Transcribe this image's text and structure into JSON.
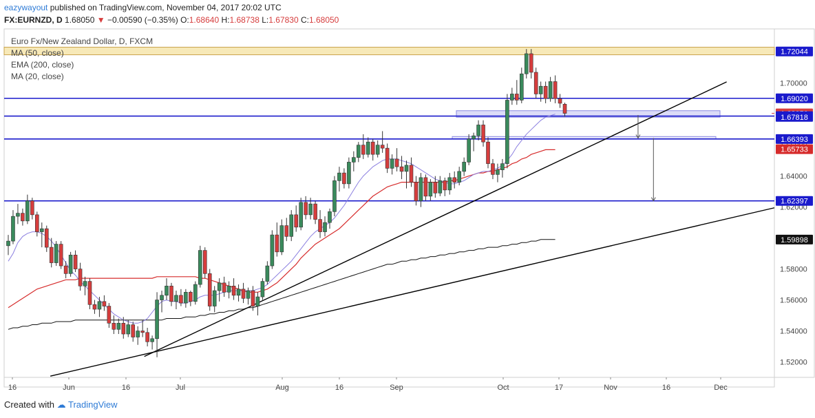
{
  "header": {
    "author": "eazywayout",
    "published": "published on TradingView.com, November 04, 2017 20:02 UTC",
    "symbol": "FX:EURNZD, D",
    "price": "1.68050",
    "change": "−0.00590 (−0.35%)",
    "o_label": "O:",
    "o_value": "1.68640",
    "h_label": "H:",
    "h_value": "1.68738",
    "l_label": "L:",
    "l_value": "1.67830",
    "c_label": "C:",
    "c_value": "1.68050"
  },
  "legend": {
    "title": "Euro Fx/New Zealand Dollar, D, FXCM",
    "ma50": "MA (50, close)",
    "ema200": "EMA (200, close)",
    "ma20": "MA (20, close)"
  },
  "footer": {
    "created_with": "Created with",
    "brand": "TradingView"
  },
  "colors": {
    "up": "#3a8a5c",
    "down": "#d63d3d",
    "ma50": "#d62b2b",
    "ema200": "#111111",
    "ma20": "#8b7fe0",
    "hline": "#1a1acc",
    "zone": "#f7e9b8",
    "trend": "#000000"
  },
  "chart_data": {
    "type": "candlestick",
    "ylim": [
      1.51,
      1.735
    ],
    "x_ticks": [
      "16",
      "Jun",
      "16",
      "Jul",
      "Aug",
      "16",
      "Sep",
      "Oct",
      "17",
      "Nov",
      "16",
      "Dec"
    ],
    "y_ticks": [
      "1.52000",
      "1.54000",
      "1.56000",
      "1.58000",
      "1.60000",
      "1.62000",
      "1.64000",
      "1.66000",
      "1.68000",
      "1.70000"
    ],
    "price_labels": [
      {
        "value": "1.72044",
        "price": 1.72044,
        "kind": "level"
      },
      {
        "value": "1.69020",
        "price": 1.6902,
        "kind": "level"
      },
      {
        "value": "1.68050",
        "price": 1.6805,
        "kind": "last"
      },
      {
        "value": "1.67872",
        "price": 1.67872,
        "kind": "level"
      },
      {
        "value": "1.67818",
        "price": 1.67818,
        "kind": "level"
      },
      {
        "value": "1.66393",
        "price": 1.66393,
        "kind": "level"
      },
      {
        "value": "1.65733",
        "price": 1.65733,
        "kind": "ma"
      },
      {
        "value": "1.62397",
        "price": 1.62397,
        "kind": "level"
      },
      {
        "value": "1.59898",
        "price": 1.59898,
        "kind": "ema"
      }
    ],
    "resistance_zone": [
      1.7183,
      1.7232
    ],
    "horizontal_levels": [
      1.6902,
      1.67872,
      1.66393,
      1.62397
    ],
    "ohlc": [
      [
        1.595,
        1.602,
        1.589,
        1.598
      ],
      [
        1.598,
        1.618,
        1.596,
        1.614
      ],
      [
        1.614,
        1.622,
        1.609,
        1.616
      ],
      [
        1.616,
        1.619,
        1.608,
        1.611
      ],
      [
        1.611,
        1.628,
        1.609,
        1.624
      ],
      [
        1.624,
        1.626,
        1.612,
        1.615
      ],
      [
        1.615,
        1.617,
        1.601,
        1.604
      ],
      [
        1.604,
        1.61,
        1.594,
        1.606
      ],
      [
        1.606,
        1.608,
        1.591,
        1.594
      ],
      [
        1.594,
        1.6,
        1.581,
        1.584
      ],
      [
        1.584,
        1.598,
        1.582,
        1.596
      ],
      [
        1.596,
        1.598,
        1.58,
        1.582
      ],
      [
        1.582,
        1.585,
        1.574,
        1.577
      ],
      [
        1.577,
        1.591,
        1.575,
        1.589
      ],
      [
        1.589,
        1.592,
        1.578,
        1.58
      ],
      [
        1.58,
        1.584,
        1.566,
        1.569
      ],
      [
        1.569,
        1.575,
        1.563,
        1.572
      ],
      [
        1.572,
        1.574,
        1.554,
        1.557
      ],
      [
        1.557,
        1.56,
        1.551,
        1.554
      ],
      [
        1.554,
        1.562,
        1.549,
        1.559
      ],
      [
        1.559,
        1.563,
        1.553,
        1.556
      ],
      [
        1.556,
        1.558,
        1.542,
        1.545
      ],
      [
        1.545,
        1.55,
        1.538,
        1.541
      ],
      [
        1.541,
        1.548,
        1.538,
        1.545
      ],
      [
        1.545,
        1.549,
        1.535,
        1.538
      ],
      [
        1.538,
        1.547,
        1.536,
        1.544
      ],
      [
        1.544,
        1.546,
        1.533,
        1.536
      ],
      [
        1.536,
        1.543,
        1.531,
        1.54
      ],
      [
        1.54,
        1.547,
        1.536,
        1.539
      ],
      [
        1.539,
        1.542,
        1.53,
        1.533
      ],
      [
        1.533,
        1.537,
        1.528,
        1.535
      ],
      [
        1.535,
        1.565,
        1.523,
        1.56
      ],
      [
        1.56,
        1.566,
        1.552,
        1.563
      ],
      [
        1.563,
        1.574,
        1.56,
        1.569
      ],
      [
        1.569,
        1.571,
        1.556,
        1.559
      ],
      [
        1.559,
        1.566,
        1.554,
        1.563
      ],
      [
        1.563,
        1.567,
        1.556,
        1.558
      ],
      [
        1.558,
        1.567,
        1.555,
        1.565
      ],
      [
        1.565,
        1.566,
        1.556,
        1.559
      ],
      [
        1.559,
        1.572,
        1.557,
        1.57
      ],
      [
        1.57,
        1.595,
        1.568,
        1.592
      ],
      [
        1.592,
        1.594,
        1.574,
        1.577
      ],
      [
        1.577,
        1.58,
        1.553,
        1.556
      ],
      [
        1.556,
        1.569,
        1.552,
        1.566
      ],
      [
        1.566,
        1.574,
        1.559,
        1.571
      ],
      [
        1.571,
        1.575,
        1.562,
        1.565
      ],
      [
        1.565,
        1.572,
        1.561,
        1.569
      ],
      [
        1.569,
        1.574,
        1.56,
        1.563
      ],
      [
        1.563,
        1.57,
        1.559,
        1.567
      ],
      [
        1.567,
        1.571,
        1.558,
        1.561
      ],
      [
        1.561,
        1.568,
        1.557,
        1.566
      ],
      [
        1.566,
        1.569,
        1.553,
        1.556
      ],
      [
        1.556,
        1.565,
        1.55,
        1.562
      ],
      [
        1.562,
        1.574,
        1.56,
        1.572
      ],
      [
        1.572,
        1.585,
        1.57,
        1.582
      ],
      [
        1.582,
        1.605,
        1.58,
        1.602
      ],
      [
        1.602,
        1.61,
        1.588,
        1.591
      ],
      [
        1.591,
        1.612,
        1.589,
        1.608
      ],
      [
        1.608,
        1.613,
        1.598,
        1.601
      ],
      [
        1.601,
        1.618,
        1.598,
        1.615
      ],
      [
        1.615,
        1.621,
        1.604,
        1.607
      ],
      [
        1.607,
        1.626,
        1.605,
        1.623
      ],
      [
        1.623,
        1.627,
        1.612,
        1.615
      ],
      [
        1.615,
        1.626,
        1.612,
        1.622
      ],
      [
        1.622,
        1.624,
        1.609,
        1.612
      ],
      [
        1.612,
        1.618,
        1.6,
        1.604
      ],
      [
        1.604,
        1.614,
        1.601,
        1.61
      ],
      [
        1.61,
        1.619,
        1.606,
        1.617
      ],
      [
        1.617,
        1.64,
        1.614,
        1.637
      ],
      [
        1.637,
        1.646,
        1.63,
        1.642
      ],
      [
        1.642,
        1.645,
        1.632,
        1.635
      ],
      [
        1.635,
        1.652,
        1.632,
        1.649
      ],
      [
        1.649,
        1.656,
        1.643,
        1.652
      ],
      [
        1.652,
        1.662,
        1.649,
        1.66
      ],
      [
        1.66,
        1.667,
        1.651,
        1.654
      ],
      [
        1.654,
        1.665,
        1.652,
        1.662
      ],
      [
        1.662,
        1.664,
        1.65,
        1.654
      ],
      [
        1.654,
        1.663,
        1.652,
        1.66
      ],
      [
        1.66,
        1.669,
        1.655,
        1.658
      ],
      [
        1.658,
        1.661,
        1.642,
        1.645
      ],
      [
        1.645,
        1.654,
        1.641,
        1.651
      ],
      [
        1.651,
        1.658,
        1.643,
        1.646
      ],
      [
        1.646,
        1.653,
        1.638,
        1.643
      ],
      [
        1.643,
        1.65,
        1.632,
        1.647
      ],
      [
        1.647,
        1.652,
        1.633,
        1.636
      ],
      [
        1.636,
        1.64,
        1.621,
        1.624
      ],
      [
        1.624,
        1.642,
        1.62,
        1.639
      ],
      [
        1.639,
        1.641,
        1.624,
        1.627
      ],
      [
        1.627,
        1.638,
        1.624,
        1.636
      ],
      [
        1.636,
        1.64,
        1.626,
        1.629
      ],
      [
        1.629,
        1.64,
        1.627,
        1.637
      ],
      [
        1.637,
        1.639,
        1.627,
        1.631
      ],
      [
        1.631,
        1.642,
        1.628,
        1.639
      ],
      [
        1.639,
        1.643,
        1.632,
        1.636
      ],
      [
        1.636,
        1.646,
        1.634,
        1.643
      ],
      [
        1.643,
        1.652,
        1.64,
        1.649
      ],
      [
        1.649,
        1.667,
        1.647,
        1.664
      ],
      [
        1.664,
        1.668,
        1.656,
        1.666
      ],
      [
        1.666,
        1.676,
        1.663,
        1.673
      ],
      [
        1.673,
        1.676,
        1.659,
        1.662
      ],
      [
        1.662,
        1.665,
        1.645,
        1.648
      ],
      [
        1.648,
        1.651,
        1.638,
        1.641
      ],
      [
        1.641,
        1.648,
        1.636,
        1.644
      ],
      [
        1.644,
        1.651,
        1.639,
        1.648
      ],
      [
        1.648,
        1.693,
        1.645,
        1.689
      ],
      [
        1.689,
        1.697,
        1.686,
        1.693
      ],
      [
        1.693,
        1.702,
        1.686,
        1.689
      ],
      [
        1.689,
        1.71,
        1.687,
        1.706
      ],
      [
        1.706,
        1.722,
        1.703,
        1.719
      ],
      [
        1.719,
        1.722,
        1.703,
        1.707
      ],
      [
        1.707,
        1.71,
        1.69,
        1.693
      ],
      [
        1.693,
        1.701,
        1.688,
        1.698
      ],
      [
        1.698,
        1.701,
        1.687,
        1.69
      ],
      [
        1.69,
        1.704,
        1.688,
        1.701
      ],
      [
        1.701,
        1.705,
        1.687,
        1.69
      ],
      [
        1.69,
        1.693,
        1.684,
        1.687
      ],
      [
        1.6864,
        1.68738,
        1.6783,
        1.6805
      ]
    ],
    "ma20": [
      1.585,
      1.59,
      1.597,
      1.601,
      1.603,
      1.604,
      1.604,
      1.603,
      1.601,
      1.598,
      1.594,
      1.589,
      1.584,
      1.579,
      1.576,
      1.572,
      1.569,
      1.566,
      1.563,
      1.56,
      1.557,
      1.554,
      1.551,
      1.549,
      1.547,
      1.546,
      1.545,
      1.545,
      1.546,
      1.548,
      1.552,
      1.556,
      1.559,
      1.56,
      1.559,
      1.559,
      1.558,
      1.558,
      1.559,
      1.56,
      1.562,
      1.563,
      1.563,
      1.563,
      1.564,
      1.565,
      1.566,
      1.566,
      1.566,
      1.566,
      1.566,
      1.566,
      1.567,
      1.568,
      1.57,
      1.573,
      1.576,
      1.579,
      1.582,
      1.585,
      1.589,
      1.593,
      1.597,
      1.601,
      1.604,
      1.606,
      1.608,
      1.61,
      1.613,
      1.617,
      1.621,
      1.626,
      1.631,
      1.636,
      1.64,
      1.643,
      1.646,
      1.648,
      1.65,
      1.651,
      1.651,
      1.651,
      1.65,
      1.649,
      1.648,
      1.646,
      1.644,
      1.642,
      1.64,
      1.638,
      1.637,
      1.636,
      1.635,
      1.635,
      1.636,
      1.637,
      1.639,
      1.641,
      1.642,
      1.643,
      1.643,
      1.644,
      1.645,
      1.647,
      1.65,
      1.654,
      1.659,
      1.663,
      1.667,
      1.67,
      1.673,
      1.676,
      1.678,
      1.679,
      1.68
    ],
    "ma50": [
      1.555,
      1.557,
      1.559,
      1.561,
      1.563,
      1.565,
      1.567,
      1.568,
      1.569,
      1.57,
      1.571,
      1.572,
      1.573,
      1.573,
      1.573,
      1.574,
      1.574,
      1.574,
      1.574,
      1.574,
      1.574,
      1.574,
      1.574,
      1.574,
      1.574,
      1.574,
      1.574,
      1.574,
      1.574,
      1.574,
      1.574,
      1.575,
      1.575,
      1.575,
      1.575,
      1.575,
      1.575,
      1.575,
      1.575,
      1.575,
      1.574,
      1.574,
      1.573,
      1.572,
      1.571,
      1.57,
      1.569,
      1.568,
      1.567,
      1.566,
      1.565,
      1.565,
      1.565,
      1.566,
      1.567,
      1.569,
      1.571,
      1.574,
      1.577,
      1.58,
      1.583,
      1.587,
      1.59,
      1.593,
      1.596,
      1.598,
      1.6,
      1.602,
      1.604,
      1.606,
      1.609,
      1.612,
      1.615,
      1.618,
      1.621,
      1.624,
      1.627,
      1.629,
      1.631,
      1.633,
      1.634,
      1.635,
      1.636,
      1.636,
      1.636,
      1.636,
      1.636,
      1.636,
      1.636,
      1.636,
      1.636,
      1.636,
      1.637,
      1.637,
      1.638,
      1.639,
      1.64,
      1.641,
      1.642,
      1.642,
      1.643,
      1.643,
      1.644,
      1.645,
      1.646,
      1.648,
      1.649,
      1.651,
      1.652,
      1.654,
      1.655,
      1.656,
      1.657,
      1.657,
      1.657
    ],
    "ema200": [
      1.541,
      1.542,
      1.542,
      1.543,
      1.543,
      1.544,
      1.544,
      1.545,
      1.545,
      1.545,
      1.546,
      1.546,
      1.546,
      1.546,
      1.547,
      1.547,
      1.547,
      1.547,
      1.547,
      1.547,
      1.547,
      1.547,
      1.547,
      1.547,
      1.547,
      1.547,
      1.547,
      1.547,
      1.547,
      1.547,
      1.547,
      1.547,
      1.547,
      1.548,
      1.548,
      1.548,
      1.548,
      1.549,
      1.549,
      1.549,
      1.55,
      1.55,
      1.551,
      1.551,
      1.552,
      1.552,
      1.553,
      1.553,
      1.554,
      1.554,
      1.555,
      1.555,
      1.556,
      1.557,
      1.558,
      1.559,
      1.56,
      1.561,
      1.562,
      1.563,
      1.564,
      1.565,
      1.566,
      1.567,
      1.568,
      1.569,
      1.57,
      1.571,
      1.572,
      1.573,
      1.574,
      1.575,
      1.576,
      1.577,
      1.578,
      1.579,
      1.58,
      1.581,
      1.582,
      1.583,
      1.583,
      1.584,
      1.585,
      1.585,
      1.586,
      1.586,
      1.587,
      1.587,
      1.588,
      1.588,
      1.589,
      1.589,
      1.59,
      1.59,
      1.591,
      1.591,
      1.592,
      1.592,
      1.593,
      1.593,
      1.594,
      1.594,
      1.594,
      1.595,
      1.595,
      1.596,
      1.596,
      1.597,
      1.597,
      1.598,
      1.598,
      1.599,
      1.599,
      1.599,
      1.599
    ],
    "trendlines": [
      {
        "x1": 0.182,
        "y1": 1.5235,
        "x2": 0.938,
        "y2": 1.7008
      },
      {
        "x1": 0.06,
        "y1": 1.5108,
        "x2": 1.0,
        "y2": 1.6195
      }
    ],
    "arrows": [
      {
        "x": 0.823,
        "from": 1.6794,
        "to": 1.6645
      },
      {
        "x": 0.843,
        "from": 1.6645,
        "to": 1.624
      }
    ]
  }
}
